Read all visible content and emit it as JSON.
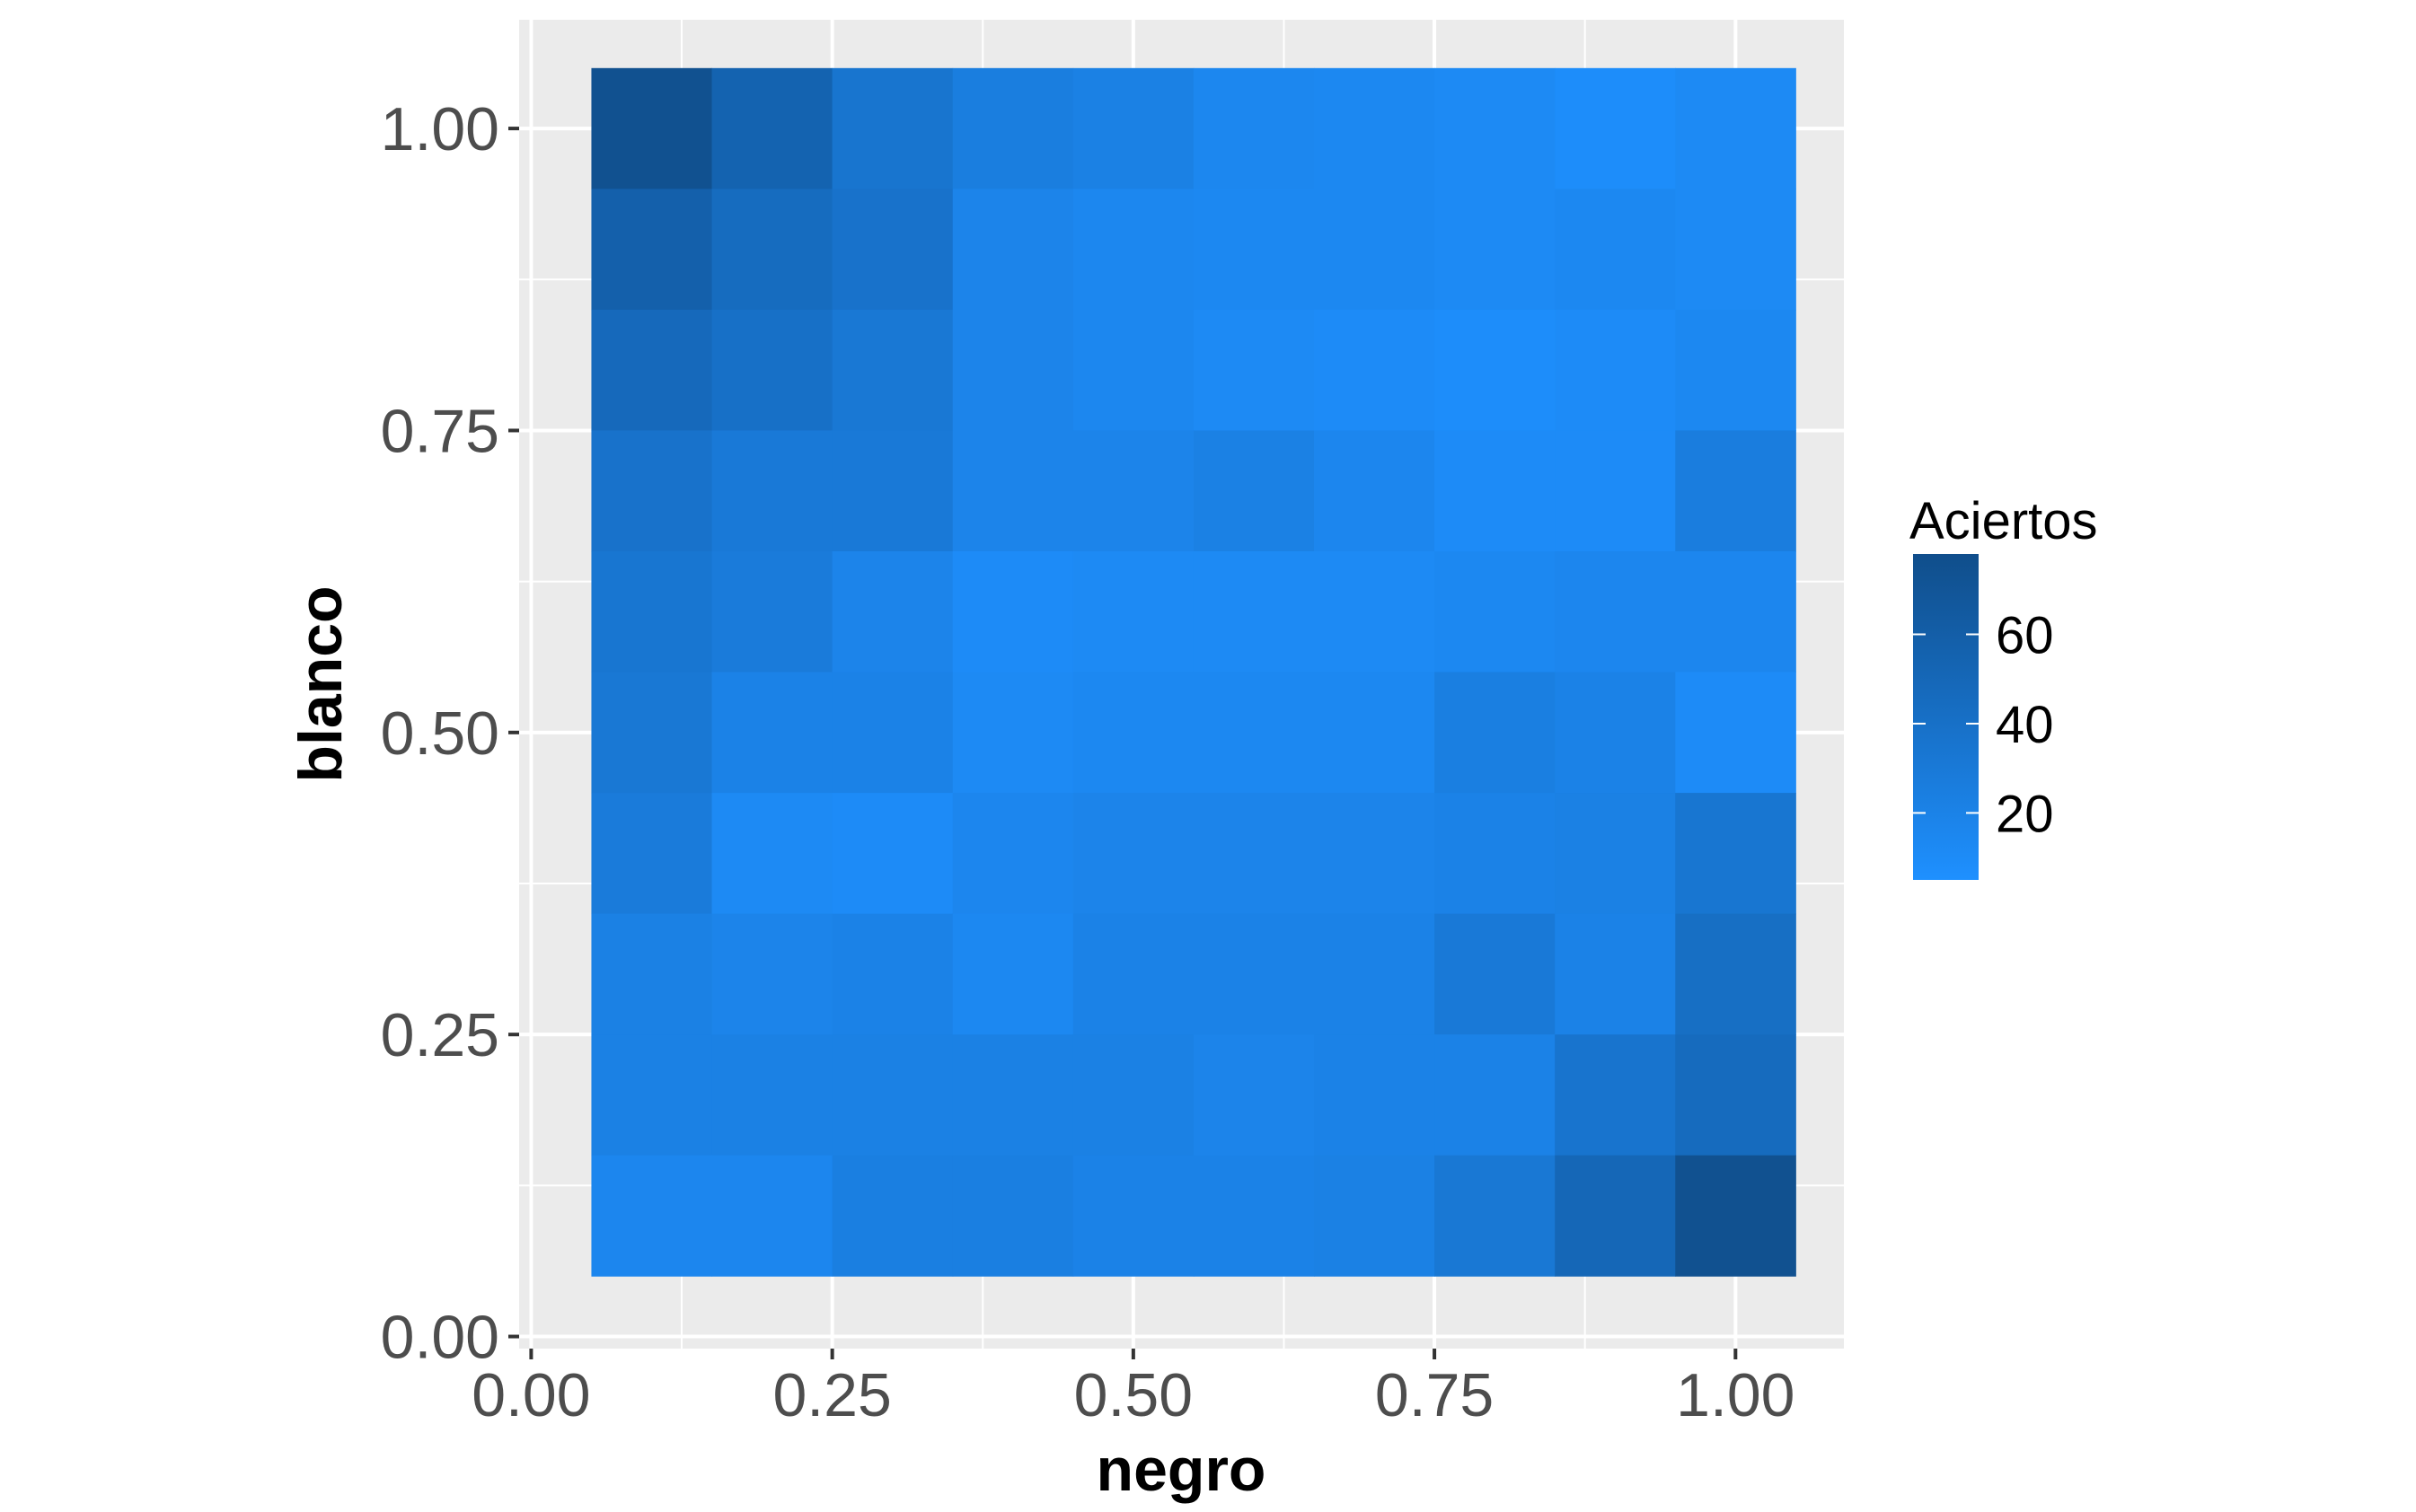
{
  "chart_data": {
    "type": "heatmap",
    "xlabel": "negro",
    "ylabel": "blanco",
    "x_centers": [
      0.1,
      0.2,
      0.3,
      0.4,
      0.5,
      0.6,
      0.7,
      0.8,
      0.9,
      1.0
    ],
    "y_centers": [
      0.1,
      0.2,
      0.3,
      0.4,
      0.5,
      0.6,
      0.7,
      0.8,
      0.9,
      1.0
    ],
    "cell_size": 0.1,
    "xlim": [
      -0.01,
      1.09
    ],
    "ylim": [
      -0.01,
      1.09
    ],
    "xticks": [
      0.0,
      0.25,
      0.5,
      0.75,
      1.0
    ],
    "yticks": [
      0.0,
      0.25,
      0.5,
      0.75,
      1.0
    ],
    "xtick_labels": [
      "0.00",
      "0.25",
      "0.50",
      "0.75",
      "1.00"
    ],
    "ytick_labels": [
      "0.00",
      "0.25",
      "0.50",
      "0.75",
      "1.00"
    ],
    "values_rows_top_to_bottom": [
      [
        75,
        55,
        35,
        25,
        22,
        15,
        14,
        12,
        8,
        12
      ],
      [
        58,
        45,
        38,
        18,
        15,
        14,
        14,
        12,
        14,
        12
      ],
      [
        48,
        40,
        32,
        18,
        15,
        12,
        10,
        8,
        10,
        14
      ],
      [
        38,
        30,
        30,
        18,
        18,
        22,
        16,
        10,
        10,
        26
      ],
      [
        34,
        28,
        18,
        10,
        12,
        12,
        12,
        14,
        16,
        16
      ],
      [
        32,
        20,
        20,
        12,
        14,
        14,
        14,
        24,
        20,
        10
      ],
      [
        28,
        12,
        10,
        16,
        18,
        18,
        18,
        20,
        22,
        34
      ],
      [
        22,
        18,
        20,
        14,
        20,
        20,
        20,
        30,
        20,
        42
      ],
      [
        22,
        22,
        22,
        22,
        22,
        18,
        20,
        20,
        36,
        46
      ],
      [
        16,
        16,
        24,
        24,
        20,
        20,
        22,
        32,
        50,
        75
      ]
    ],
    "legend": {
      "title": "Aciertos",
      "ticks": [
        20,
        40,
        60
      ],
      "tick_labels": [
        "20",
        "40",
        "60"
      ],
      "range": [
        5,
        78
      ],
      "color_low": "#1E90FF",
      "color_high": "#104E8B",
      "placement": "right"
    },
    "panel_background": "#EBEBEB",
    "grid": true
  }
}
